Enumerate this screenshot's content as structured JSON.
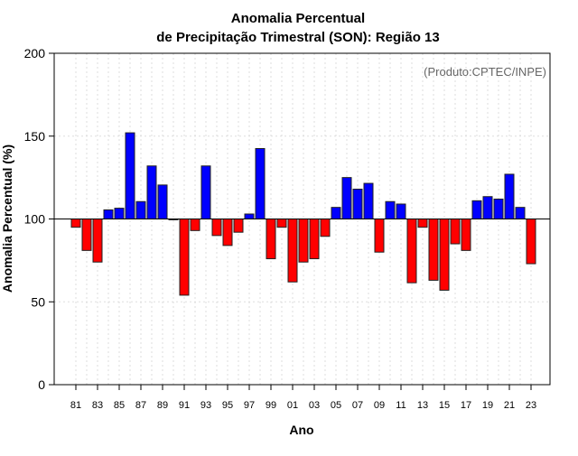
{
  "chart_data": {
    "type": "bar",
    "title": "Anomalia Percentual",
    "subtitle": "de Precipitação Trimestral (SON): Região 13",
    "xlabel": "Ano",
    "ylabel": "Anomalia Percentual (%)",
    "annotation": "(Produto:CPTEC/INPE)",
    "baseline": 100,
    "ylim": [
      0,
      200
    ],
    "xlim": [
      1979,
      2024.75
    ],
    "yticks": [
      0,
      50,
      100,
      150,
      200
    ],
    "xtick_labels": [
      "81",
      "83",
      "85",
      "87",
      "89",
      "91",
      "93",
      "95",
      "97",
      "99",
      "01",
      "03",
      "05",
      "07",
      "09",
      "11",
      "13",
      "15",
      "17",
      "19",
      "21",
      "23"
    ],
    "years": [
      1981,
      1982,
      1983,
      1984,
      1985,
      1986,
      1987,
      1988,
      1989,
      1990,
      1991,
      1992,
      1993,
      1994,
      1995,
      1996,
      1997,
      1998,
      1999,
      2000,
      2001,
      2002,
      2003,
      2004,
      2005,
      2006,
      2007,
      2008,
      2009,
      2010,
      2011,
      2012,
      2013,
      2014,
      2015,
      2016,
      2017,
      2018,
      2019,
      2020,
      2021,
      2022,
      2023
    ],
    "values": [
      95,
      81,
      74,
      105.5,
      106.5,
      152,
      110.5,
      132,
      120.5,
      99.5,
      54,
      93,
      132,
      90,
      84,
      92,
      103,
      142.5,
      76,
      95,
      62,
      74,
      76,
      89.5,
      107,
      125,
      118,
      121.5,
      80,
      110.5,
      109,
      61.5,
      95,
      63,
      57,
      85,
      81,
      111,
      113.5,
      112,
      127,
      107,
      73
    ],
    "grid": true,
    "colors": {
      "above": "#0000ff",
      "below": "#ff0000"
    }
  }
}
